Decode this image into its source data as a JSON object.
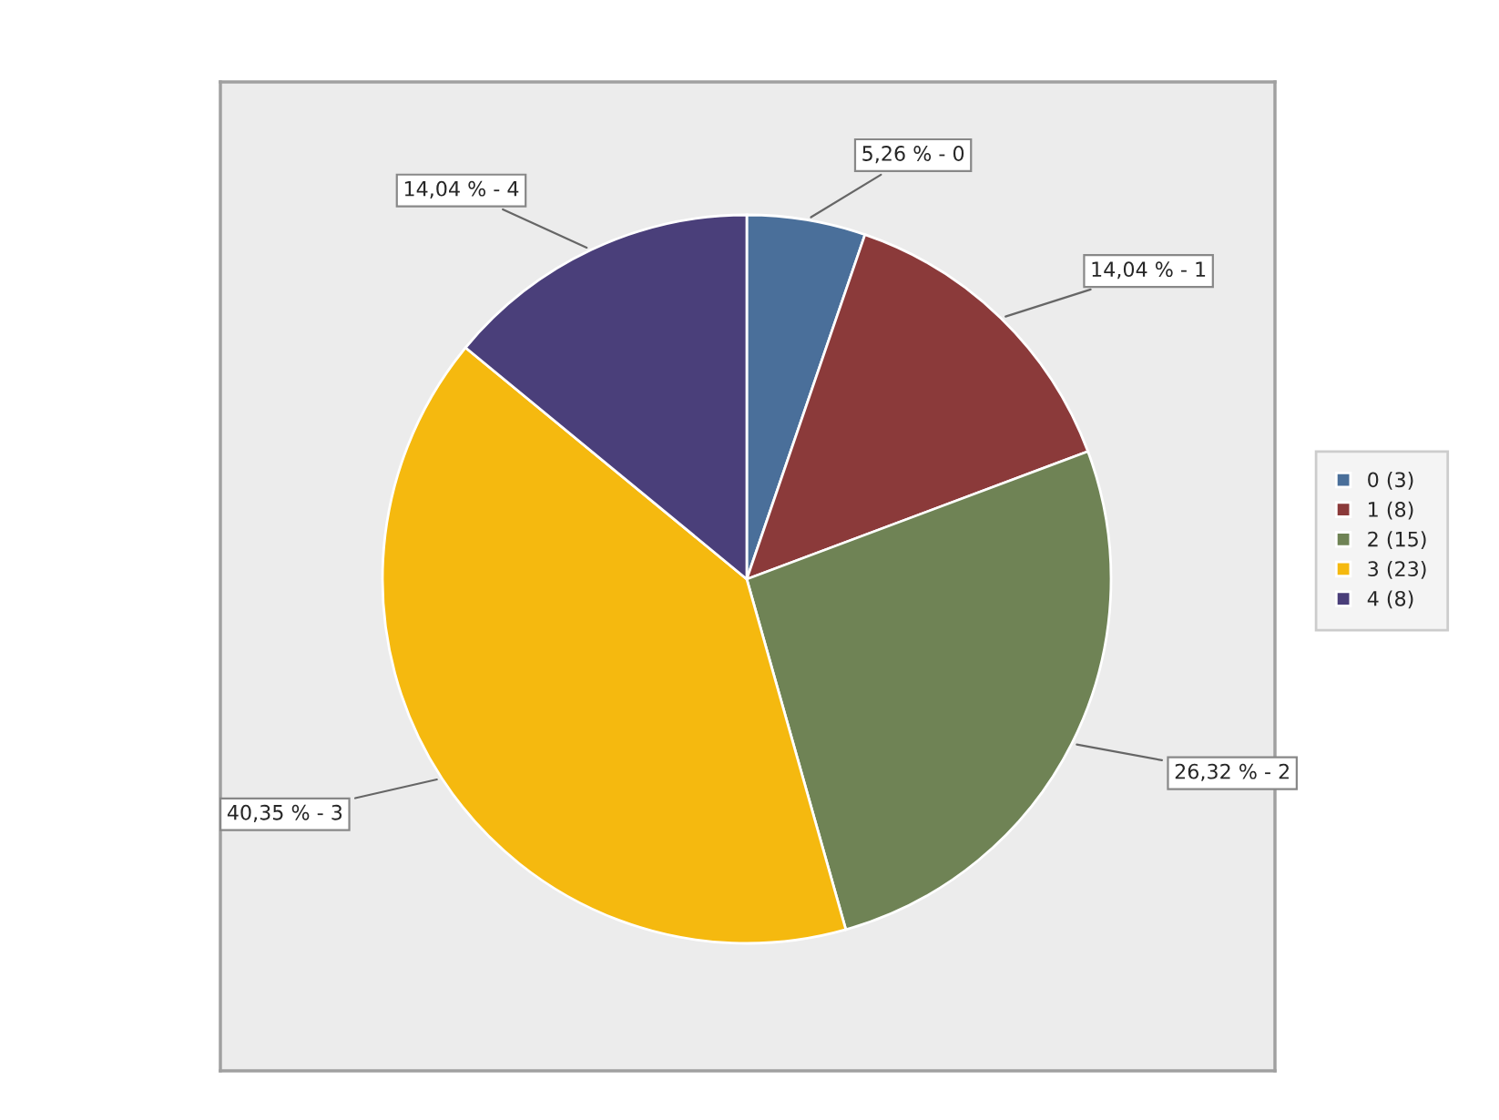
{
  "chart_data": {
    "type": "pie",
    "categories": [
      "0 (3)",
      "1 (8)",
      "2 (15)",
      "3 (23)",
      "4 (8)"
    ],
    "values": [
      5.26,
      14.04,
      26.32,
      40.35,
      14.04
    ],
    "colors": [
      "#4a6f9a",
      "#8b3a3a",
      "#6f8355",
      "#f5b90f",
      "#4a3f7a"
    ],
    "value_labels": [
      "5,26 % - 0",
      "14,04 % - 1",
      "26,32 % - 2",
      "40,35 % - 3",
      "14,04 % - 4"
    ],
    "legend": "right"
  }
}
